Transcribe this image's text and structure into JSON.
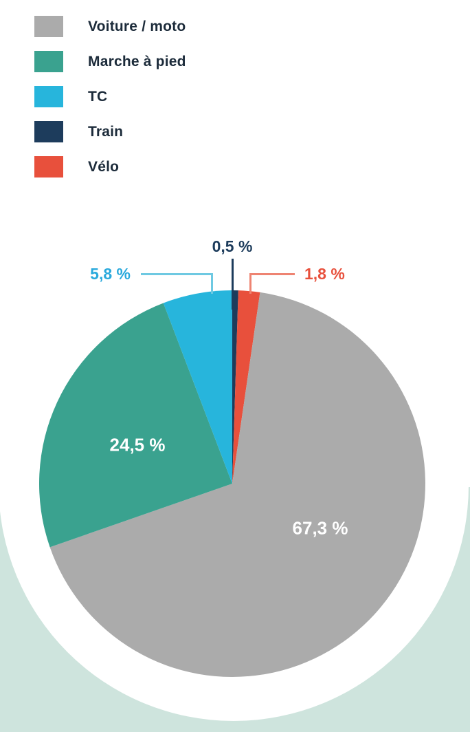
{
  "chart_data": {
    "type": "pie",
    "unit": "%",
    "series": [
      {
        "label": "Voiture / moto",
        "slug": "voiture-moto",
        "value": 67.3,
        "display": "67,3 %",
        "color": "#ababab",
        "label_color": "#ffffff"
      },
      {
        "label": "Marche à pied",
        "slug": "marche-a-pied",
        "value": 24.5,
        "display": "24,5 %",
        "color": "#3aa28f",
        "label_color": "#ffffff"
      },
      {
        "label": "TC",
        "slug": "tc",
        "value": 5.8,
        "display": "5,8 %",
        "color": "#27b5dc",
        "label_color": "#29a9dc"
      },
      {
        "label": "Train",
        "slug": "train",
        "value": 0.5,
        "display": "0,5 %",
        "color": "#1d3c5c",
        "label_color": "#1d3c5c"
      },
      {
        "label": "Vélo",
        "slug": "velo",
        "value": 1.8,
        "display": "1,8 %",
        "color": "#e8503c",
        "label_color": "#e8503c"
      }
    ],
    "draw_order_from_top_clockwise": [
      "train",
      "velo",
      "voiture-moto",
      "marche-a-pied",
      "tc"
    ],
    "legend_position": "top-left",
    "leader_line_colors": {
      "train": "#1d3c5c",
      "tc": "#6ec9e2",
      "velo": "#ee8472"
    },
    "background": {
      "page": "#ffffff",
      "bottom_band": "#cee4dd",
      "decorative_circle": "#ffffff"
    },
    "legend_text_color": "#1c2b3a"
  }
}
